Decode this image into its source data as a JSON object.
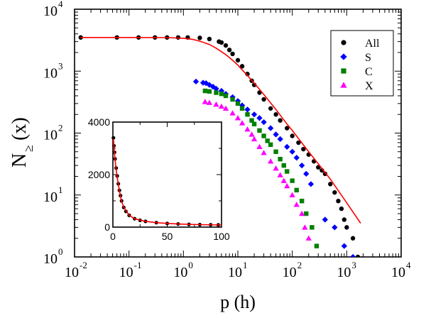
{
  "chart_data": [
    {
      "type": "scatter",
      "title": "",
      "xlabel": "p (h)",
      "ylabel_main": "N",
      "ylabel_sub": "≥",
      "ylabel_arg": "(x)",
      "xscale": "log",
      "yscale": "log",
      "xlim": [
        0.01,
        10000
      ],
      "ylim": [
        1,
        10000
      ],
      "grid": false,
      "legend_position": "top-right",
      "x_ticks": [
        {
          "base": "10",
          "exp": "-2",
          "value": 0.01
        },
        {
          "base": "10",
          "exp": "-1",
          "value": 0.1
        },
        {
          "base": "10",
          "exp": "0",
          "value": 1
        },
        {
          "base": "10",
          "exp": "1",
          "value": 10
        },
        {
          "base": "10",
          "exp": "2",
          "value": 100
        },
        {
          "base": "10",
          "exp": "3",
          "value": 1000
        },
        {
          "base": "10",
          "exp": "4",
          "value": 10000
        }
      ],
      "y_ticks": [
        {
          "base": "10",
          "exp": "0",
          "value": 1
        },
        {
          "base": "10",
          "exp": "1",
          "value": 10
        },
        {
          "base": "10",
          "exp": "2",
          "value": 100
        },
        {
          "base": "10",
          "exp": "3",
          "value": 1000
        },
        {
          "base": "10",
          "exp": "4",
          "value": 10000
        }
      ],
      "series": [
        {
          "name": "All",
          "marker": "circle",
          "color": "#000000",
          "x": [
            0.013,
            0.06,
            0.15,
            0.3,
            0.5,
            0.8,
            1.2,
            2.0,
            3.0,
            4.5,
            5,
            6,
            7,
            8,
            10,
            12,
            15,
            18,
            20,
            25,
            30,
            40,
            50,
            60,
            80,
            100,
            130,
            160,
            200,
            250,
            300,
            350,
            400,
            500,
            600,
            700,
            800,
            900,
            1000,
            1300,
            1600
          ],
          "y": [
            3500,
            3500,
            3500,
            3500,
            3500,
            3500,
            3500,
            3450,
            3300,
            3000,
            2900,
            2600,
            2200,
            1900,
            1500,
            1200,
            900,
            700,
            600,
            450,
            350,
            250,
            200,
            160,
            120,
            90,
            70,
            55,
            45,
            35,
            28,
            25,
            22,
            15,
            11,
            8,
            6,
            4,
            3,
            2,
            1
          ]
        },
        {
          "name": "S",
          "marker": "diamond",
          "color": "#0000ff",
          "x": [
            1.7,
            2.3,
            2.6,
            3,
            3.5,
            4,
            5,
            6,
            8,
            10,
            12,
            15,
            20,
            25,
            30,
            40,
            50,
            60,
            80,
            100,
            120,
            150,
            180,
            220,
            400,
            600,
            900,
            1300
          ],
          "y": [
            680,
            650,
            640,
            600,
            560,
            520,
            480,
            430,
            380,
            330,
            280,
            240,
            200,
            175,
            150,
            120,
            95,
            80,
            60,
            50,
            40,
            30,
            22,
            15,
            4,
            3,
            1.5,
            1
          ]
        },
        {
          "name": "C",
          "marker": "square",
          "color": "#008000",
          "x": [
            2.5,
            3,
            4,
            5,
            6,
            8,
            10,
            12,
            15,
            18,
            20,
            25,
            30,
            35,
            40,
            50,
            60,
            70,
            80,
            100,
            120,
            150,
            180,
            230,
            280
          ],
          "y": [
            480,
            470,
            450,
            430,
            400,
            350,
            300,
            250,
            200,
            160,
            140,
            110,
            90,
            75,
            65,
            50,
            38,
            30,
            24,
            17,
            12,
            8,
            5,
            3,
            1.5
          ]
        },
        {
          "name": "X",
          "marker": "triangle",
          "color": "#ff00ff",
          "x": [
            2.5,
            3,
            4,
            5,
            6,
            8,
            10,
            12,
            15,
            18,
            20,
            25,
            30,
            40,
            50,
            60,
            70,
            80,
            100,
            120,
            150,
            170,
            200
          ],
          "y": [
            320,
            310,
            290,
            270,
            250,
            210,
            175,
            145,
            115,
            95,
            80,
            60,
            48,
            35,
            27,
            21,
            17,
            14,
            10,
            7,
            5,
            3,
            2
          ]
        },
        {
          "name": "fit",
          "marker": "line",
          "color": "#ff0000",
          "x": [
            0.013,
            0.1,
            0.5,
            1,
            1.5,
            2,
            3,
            4,
            6,
            8,
            10,
            15,
            20,
            30,
            50,
            80,
            100,
            200,
            300,
            500,
            1000,
            1800
          ],
          "y": [
            3500,
            3500,
            3480,
            3400,
            3250,
            3050,
            2700,
            2350,
            1850,
            1500,
            1250,
            850,
            640,
            420,
            240,
            140,
            110,
            50,
            32,
            18,
            7.5,
            3.5
          ]
        }
      ],
      "legend": [
        {
          "label": "All",
          "marker": "circle",
          "color": "#000000"
        },
        {
          "label": "S",
          "marker": "diamond",
          "color": "#0000ff"
        },
        {
          "label": "C",
          "marker": "square",
          "color": "#008000"
        },
        {
          "label": "X",
          "marker": "triangle",
          "color": "#ff00ff"
        }
      ]
    },
    {
      "type": "scatter",
      "title": "",
      "xlim": [
        0,
        100
      ],
      "ylim": [
        0,
        4000
      ],
      "x_ticks": [
        "0",
        "50",
        "100"
      ],
      "y_ticks": [
        "0",
        "2000",
        "4000"
      ],
      "x_tick_values": [
        0,
        50,
        100
      ],
      "y_tick_values": [
        0,
        2000,
        4000
      ],
      "series": [
        {
          "name": "All",
          "marker": "circle",
          "color": "#000000",
          "x": [
            0.5,
            1,
            1.5,
            2,
            3,
            4,
            5,
            6,
            7,
            8,
            10,
            12,
            15,
            20,
            25,
            30,
            40,
            50,
            60,
            70,
            80,
            90,
            97
          ],
          "y": [
            3400,
            3100,
            2850,
            2600,
            2250,
            1950,
            1650,
            1400,
            1200,
            1000,
            750,
            600,
            450,
            320,
            260,
            220,
            170,
            140,
            120,
            105,
            95,
            90,
            85
          ]
        },
        {
          "name": "fit",
          "marker": "line",
          "color": "#ff0000",
          "x": [
            0.5,
            1,
            2,
            3,
            4,
            5,
            6,
            8,
            10,
            15,
            20,
            30,
            40,
            50,
            60,
            80,
            100
          ],
          "y": [
            3350,
            3050,
            2550,
            2200,
            1900,
            1620,
            1380,
            990,
            760,
            450,
            320,
            220,
            170,
            140,
            120,
            95,
            80
          ]
        }
      ]
    }
  ]
}
